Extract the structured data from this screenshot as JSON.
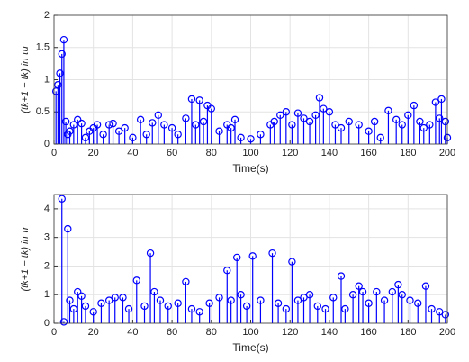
{
  "chart_data": [
    {
      "type": "stem",
      "color": "#0000ff",
      "grid": true,
      "xlabel": "Time(s)",
      "ylabel": "(tk+1 − tk) in τu",
      "xlim": [
        0,
        200
      ],
      "xticks": [
        0,
        20,
        40,
        60,
        80,
        100,
        120,
        140,
        160,
        180,
        200
      ],
      "ylim": [
        0,
        2
      ],
      "yticks": [
        0,
        0.5,
        1,
        1.5,
        2
      ],
      "x": [
        1,
        2,
        3,
        4,
        5,
        6,
        7,
        8,
        10,
        12,
        14,
        16,
        18,
        20,
        22,
        25,
        28,
        30,
        33,
        36,
        40,
        44,
        47,
        50,
        53,
        56,
        60,
        63,
        67,
        70,
        72,
        74,
        76,
        78,
        80,
        84,
        88,
        90,
        92,
        95,
        100,
        105,
        110,
        112,
        115,
        118,
        121,
        124,
        127,
        130,
        133,
        135,
        137,
        140,
        143,
        146,
        150,
        155,
        160,
        163,
        166,
        170,
        174,
        177,
        180,
        183,
        186,
        188,
        191,
        194,
        196,
        197,
        199,
        200
      ],
      "values": [
        0.82,
        0.92,
        1.1,
        1.4,
        1.62,
        0.35,
        0.15,
        0.2,
        0.3,
        0.38,
        0.32,
        0.1,
        0.2,
        0.25,
        0.3,
        0.15,
        0.3,
        0.32,
        0.2,
        0.25,
        0.1,
        0.38,
        0.15,
        0.33,
        0.45,
        0.3,
        0.25,
        0.15,
        0.4,
        0.7,
        0.3,
        0.68,
        0.35,
        0.6,
        0.55,
        0.2,
        0.3,
        0.25,
        0.38,
        0.1,
        0.08,
        0.15,
        0.3,
        0.35,
        0.45,
        0.5,
        0.3,
        0.48,
        0.4,
        0.35,
        0.45,
        0.72,
        0.55,
        0.5,
        0.3,
        0.25,
        0.35,
        0.3,
        0.2,
        0.35,
        0.1,
        0.52,
        0.38,
        0.3,
        0.45,
        0.6,
        0.35,
        0.25,
        0.3,
        0.65,
        0.4,
        0.7,
        0.35,
        0.1
      ]
    },
    {
      "type": "stem",
      "color": "#0000ff",
      "grid": true,
      "xlabel": "Time(s)",
      "ylabel": "(tk+1 − tk) in τr",
      "xlim": [
        0,
        200
      ],
      "xticks": [
        0,
        20,
        40,
        60,
        80,
        100,
        120,
        140,
        160,
        180,
        200
      ],
      "ylim": [
        0,
        4.5
      ],
      "yticks": [
        0,
        1,
        2,
        3,
        4
      ],
      "x": [
        4,
        5,
        7,
        8,
        10,
        12,
        14,
        16,
        20,
        24,
        28,
        31,
        35,
        38,
        42,
        46,
        49,
        51,
        54,
        58,
        63,
        67,
        70,
        74,
        79,
        84,
        88,
        90,
        93,
        95,
        98,
        101,
        105,
        111,
        114,
        118,
        121,
        124,
        127,
        130,
        134,
        138,
        142,
        146,
        148,
        152,
        155,
        157,
        160,
        164,
        168,
        172,
        175,
        177,
        181,
        185,
        189,
        192,
        196,
        199
      ],
      "values": [
        4.35,
        0.05,
        3.3,
        0.8,
        0.5,
        1.1,
        0.95,
        0.6,
        0.4,
        0.7,
        0.8,
        0.9,
        0.9,
        0.5,
        1.5,
        0.6,
        2.45,
        1.1,
        0.8,
        0.6,
        0.7,
        1.45,
        0.5,
        0.4,
        0.7,
        0.9,
        1.85,
        0.8,
        2.3,
        1.0,
        0.6,
        2.35,
        0.8,
        2.45,
        0.7,
        0.5,
        2.15,
        0.8,
        0.9,
        1.0,
        0.6,
        0.5,
        0.9,
        1.65,
        0.5,
        1.0,
        1.3,
        1.1,
        0.7,
        1.1,
        0.8,
        1.1,
        1.35,
        1.0,
        0.8,
        0.7,
        1.3,
        0.5,
        0.4,
        0.3
      ]
    }
  ]
}
